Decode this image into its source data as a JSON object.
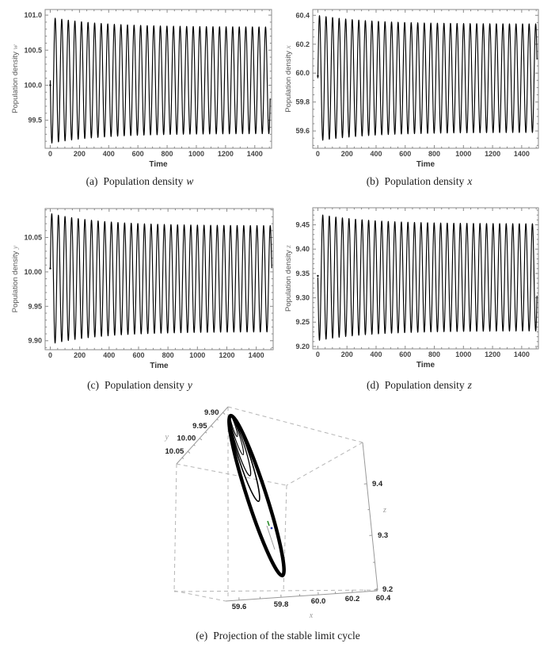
{
  "captions": {
    "a": {
      "tag": "(a)",
      "text": "Population density",
      "var": "w"
    },
    "b": {
      "tag": "(b)",
      "text": "Population density",
      "var": "x"
    },
    "c": {
      "tag": "(c)",
      "text": "Population density",
      "var": "y"
    },
    "d": {
      "tag": "(d)",
      "text": "Population density",
      "var": "z"
    },
    "e": {
      "tag": "(e)",
      "text": "Projection of the stable limit cycle",
      "var": ""
    }
  },
  "colors": {
    "series": "#000000",
    "frame": "#8a8a8a",
    "tick_label": "#444444",
    "axis_label": "#555555",
    "time_label": "#333333",
    "box_dashed": "#b5b5b5",
    "box_solid": "#999999",
    "marker_green": "#2a8a2a",
    "marker_blue": "#3344bb",
    "marker_gray": "#999999"
  },
  "chart_data": [
    {
      "type": "line",
      "panel": "a",
      "ylabel": "Population density",
      "yvar": "w",
      "xlabel": "Time",
      "x_ticks": [
        "0",
        "200",
        "400",
        "600",
        "800",
        "1000",
        "1200",
        "1400"
      ],
      "y_ticks": [
        "99.5",
        "100.0",
        "100.5",
        "101.0"
      ],
      "y_minor_div": 5,
      "xlim": [
        -35,
        1515
      ],
      "ylim": [
        99.1,
        101.08
      ],
      "t_range": [
        0,
        1505
      ],
      "series_model": {
        "kind": "damped_oscillation_to_limit_cycle",
        "equilibrium": 100.07,
        "amplitude_start": 0.9,
        "amplitude_end": 0.76,
        "decay_tau": 350,
        "period": 45,
        "phase": 3.1416,
        "start_value": 100.0
      },
      "envelope": {
        "peak_start": 100.97,
        "peak_end": 100.83,
        "trough_start": 99.17,
        "trough_end": 99.31
      }
    },
    {
      "type": "line",
      "panel": "b",
      "ylabel": "Population density",
      "yvar": "x",
      "xlabel": "Time",
      "x_ticks": [
        "0",
        "200",
        "400",
        "600",
        "800",
        "1000",
        "1200",
        "1400"
      ],
      "y_ticks": [
        "59.6",
        "59.8",
        "60.0",
        "60.2",
        "60.4"
      ],
      "y_minor_div": 4,
      "xlim": [
        -35,
        1515
      ],
      "ylim": [
        59.48,
        60.44
      ],
      "t_range": [
        0,
        1505
      ],
      "series_model": {
        "kind": "damped_oscillation_to_limit_cycle",
        "equilibrium": 59.965,
        "amplitude_start": 0.435,
        "amplitude_end": 0.375,
        "decay_tau": 350,
        "period": 45,
        "phase": 0,
        "start_value": 59.98
      },
      "envelope": {
        "peak_start": 60.4,
        "peak_end": 60.35,
        "trough_start": 59.53,
        "trough_end": 59.6
      }
    },
    {
      "type": "line",
      "panel": "c",
      "ylabel": "Population density",
      "yvar": "y",
      "xlabel": "Time",
      "x_ticks": [
        "0",
        "200",
        "400",
        "600",
        "800",
        "1000",
        "1200",
        "1400"
      ],
      "y_ticks": [
        "9.90",
        "9.95",
        "10.00",
        "10.05"
      ],
      "y_minor_div": 5,
      "xlim": [
        -35,
        1515
      ],
      "ylim": [
        9.887,
        10.092
      ],
      "t_range": [
        0,
        1505
      ],
      "series_model": {
        "kind": "damped_oscillation_to_limit_cycle",
        "equilibrium": 9.99,
        "amplitude_start": 0.095,
        "amplitude_end": 0.077,
        "decay_tau": 350,
        "period": 45,
        "phase": 0.15,
        "start_value": 10.005
      },
      "envelope": {
        "peak_start": 10.085,
        "peak_end": 10.067,
        "trough_start": 9.895,
        "trough_end": 9.913
      }
    },
    {
      "type": "line",
      "panel": "d",
      "ylabel": "Population density",
      "yvar": "z",
      "xlabel": "Time",
      "x_ticks": [
        "0",
        "200",
        "400",
        "600",
        "800",
        "1000",
        "1200",
        "1400"
      ],
      "y_ticks": [
        "9.20",
        "9.25",
        "9.30",
        "9.35",
        "9.40",
        "9.45"
      ],
      "y_minor_div": 5,
      "xlim": [
        -35,
        1515
      ],
      "ylim": [
        9.195,
        9.485
      ],
      "t_range": [
        0,
        1505
      ],
      "series_model": {
        "kind": "damped_oscillation_to_limit_cycle",
        "equilibrium": 9.342,
        "amplitude_start": 0.13,
        "amplitude_end": 0.11,
        "decay_tau": 350,
        "period": 45,
        "phase": 3.1416,
        "start_value": 9.345
      },
      "envelope": {
        "peak_start": 9.472,
        "peak_end": 9.45,
        "trough_start": 9.212,
        "trough_end": 9.23
      }
    },
    {
      "type": "line3d",
      "panel": "e",
      "subtype": "stable-limit-cycle-projection",
      "xlabel": "x",
      "ylabel": "y",
      "zlabel": "z",
      "x_ticks": [
        "59.6",
        "59.8",
        "60.0",
        "60.2",
        "60.4"
      ],
      "y_ticks": [
        "9.90",
        "9.95",
        "10.00",
        "10.05"
      ],
      "z_ticks": [
        "9.4",
        "9.3",
        "9.2"
      ],
      "x_range": [
        59.5,
        60.45
      ],
      "y_range": [
        9.88,
        10.07
      ],
      "z_range": [
        9.2,
        9.45
      ],
      "cycle_extent": {
        "x": [
          59.53,
          60.4
        ],
        "y": [
          9.9,
          10.07
        ],
        "z": [
          9.21,
          9.47
        ]
      },
      "description": "Thick black elongated limit-cycle loop from upper-left to lower-right inside a dashed box, with a transient spiral converging at the top tip and a small equilibrium marker at the center"
    }
  ]
}
